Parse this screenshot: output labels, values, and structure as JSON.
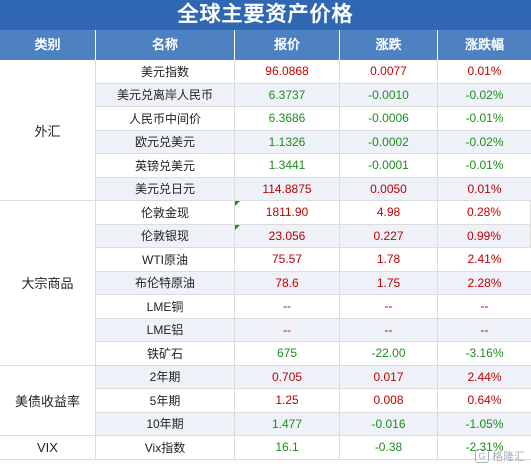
{
  "title": "全球主要资产价格",
  "headers": {
    "category": "类别",
    "name": "名称",
    "price": "报价",
    "change": "涨跌",
    "change_pct": "涨跌幅"
  },
  "groups": [
    {
      "label": "外汇",
      "rows": [
        {
          "name": "美元指数",
          "price": "96.0868",
          "change": "0.0077",
          "pct": "0.01%",
          "dir": "up"
        },
        {
          "name": "美元兑离岸人民币",
          "price": "6.3737",
          "change": "-0.0010",
          "pct": "-0.02%",
          "dir": "down"
        },
        {
          "name": "人民币中间价",
          "price": "6.3686",
          "change": "-0.0006",
          "pct": "-0.01%",
          "dir": "down"
        },
        {
          "name": "欧元兑美元",
          "price": "1.1326",
          "change": "-0.0002",
          "pct": "-0.02%",
          "dir": "down"
        },
        {
          "name": "英镑兑美元",
          "price": "1.3441",
          "change": "-0.0001",
          "pct": "-0.01%",
          "dir": "down"
        },
        {
          "name": "美元兑日元",
          "price": "114.8875",
          "change": "0.0050",
          "pct": "0.01%",
          "dir": "up"
        }
      ]
    },
    {
      "label": "大宗商品",
      "rows": [
        {
          "name": "伦敦金现",
          "price": "1811.90",
          "change": "4.98",
          "pct": "0.28%",
          "dir": "up",
          "marker": true
        },
        {
          "name": "伦敦银现",
          "price": "23.056",
          "change": "0.227",
          "pct": "0.99%",
          "dir": "up",
          "marker": true
        },
        {
          "name": "WTI原油",
          "price": "75.57",
          "change": "1.78",
          "pct": "2.41%",
          "dir": "up"
        },
        {
          "name": "布伦特原油",
          "price": "78.6",
          "change": "1.75",
          "pct": "2.28%",
          "dir": "up"
        },
        {
          "name": "LME铜",
          "price": "--",
          "change": "--",
          "pct": "--",
          "dir": "flat"
        },
        {
          "name": "LME铝",
          "price": "--",
          "change": "--",
          "pct": "--",
          "dir": "flat"
        },
        {
          "name": "铁矿石",
          "price": "675",
          "change": "-22.00",
          "pct": "-3.16%",
          "dir": "down"
        }
      ]
    },
    {
      "label": "美债收益率",
      "rows": [
        {
          "name": "2年期",
          "price": "0.705",
          "change": "0.017",
          "pct": "2.44%",
          "dir": "up"
        },
        {
          "name": "5年期",
          "price": "1.25",
          "change": "0.008",
          "pct": "0.64%",
          "dir": "up"
        },
        {
          "name": "10年期",
          "price": "1.477",
          "change": "-0.016",
          "pct": "-1.05%",
          "dir": "down"
        }
      ]
    },
    {
      "label": "VIX",
      "rows": [
        {
          "name": "Vix指数",
          "price": "16.1",
          "change": "-0.38",
          "pct": "-2.31%",
          "dir": "down"
        }
      ]
    }
  ],
  "watermark": "格隆汇",
  "watermark_logo": "G"
}
